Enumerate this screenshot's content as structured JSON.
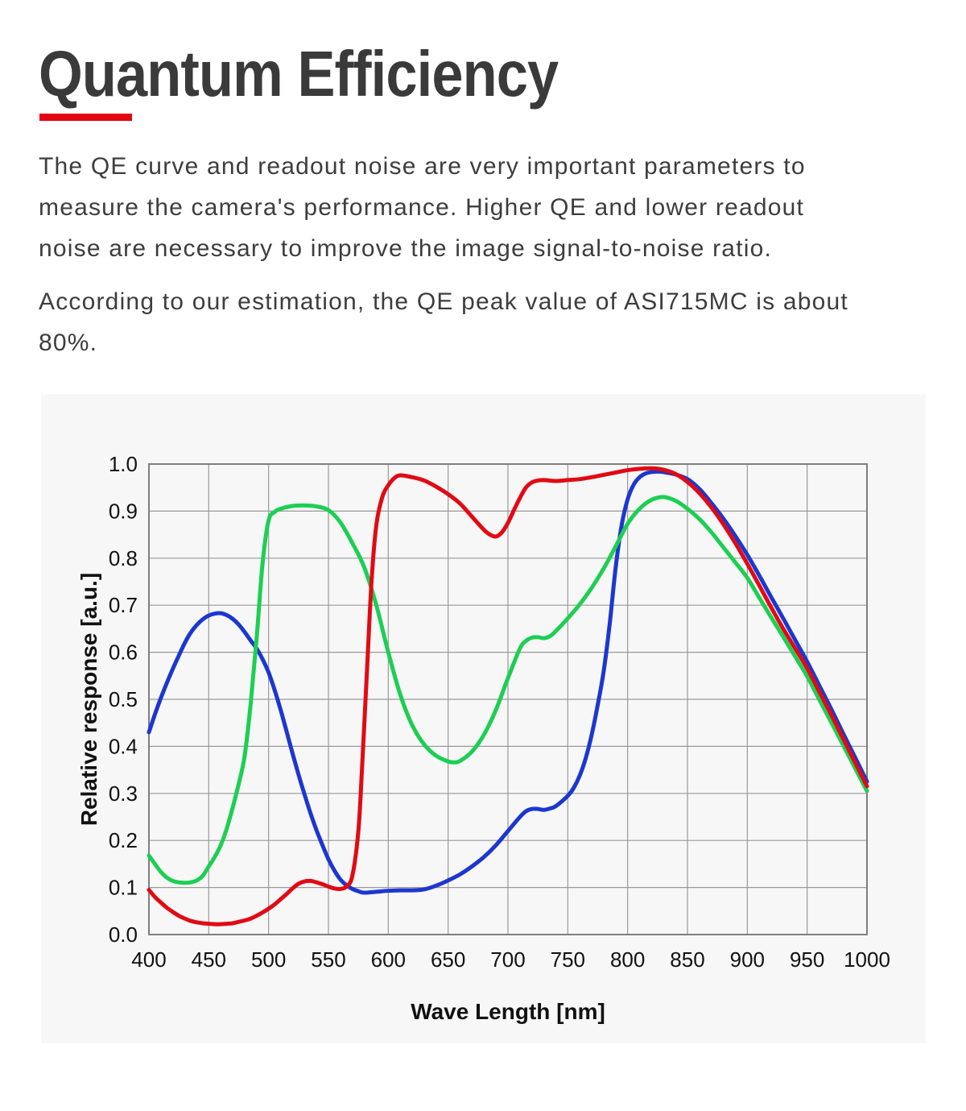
{
  "header": {
    "title": "Quantum Efficiency"
  },
  "paragraphs": {
    "p1": "The QE curve and readout noise are very important parameters to\nmeasure the camera's performance. Higher QE and lower readout\nnoise are necessary to improve the image signal-to-noise ratio.",
    "p2": "According to our estimation, the QE peak value of ASI715MC is about\n80%."
  },
  "colors": {
    "accent_red": "#e30613",
    "heading_text": "#3a3a3a",
    "body_text": "#3d3d3d",
    "panel_background": "#f7f7f7",
    "grid_line": "#999999",
    "plot_border": "#7f7f7f",
    "tick_text": "#111111"
  },
  "chart_data": {
    "type": "line",
    "title": "",
    "xlabel": "Wave Length [nm]",
    "ylabel": "Relative response  [a.u.]",
    "xlim": [
      400,
      1000
    ],
    "ylim": [
      0.0,
      1.0
    ],
    "grid": true,
    "legend_position": "none",
    "x_ticks": [
      "400",
      "450",
      "500",
      "550",
      "600",
      "650",
      "700",
      "750",
      "800",
      "850",
      "900",
      "950",
      "1000"
    ],
    "y_ticks": [
      "0.0",
      "0.1",
      "0.2",
      "0.3",
      "0.4",
      "0.5",
      "0.6",
      "0.7",
      "0.8",
      "0.9",
      "1.0"
    ],
    "series": [
      {
        "name": "blue-channel",
        "color": "#1c37d0",
        "points": [
          [
            400,
            0.43
          ],
          [
            405,
            0.468
          ],
          [
            410,
            0.503
          ],
          [
            415,
            0.535
          ],
          [
            420,
            0.565
          ],
          [
            425,
            0.593
          ],
          [
            430,
            0.62
          ],
          [
            435,
            0.642
          ],
          [
            440,
            0.658
          ],
          [
            445,
            0.67
          ],
          [
            450,
            0.678
          ],
          [
            455,
            0.682
          ],
          [
            460,
            0.683
          ],
          [
            465,
            0.679
          ],
          [
            470,
            0.671
          ],
          [
            475,
            0.659
          ],
          [
            480,
            0.643
          ],
          [
            485,
            0.625
          ],
          [
            490,
            0.608
          ],
          [
            495,
            0.585
          ],
          [
            500,
            0.557
          ],
          [
            505,
            0.52
          ],
          [
            510,
            0.478
          ],
          [
            515,
            0.432
          ],
          [
            520,
            0.385
          ],
          [
            525,
            0.34
          ],
          [
            530,
            0.298
          ],
          [
            535,
            0.258
          ],
          [
            540,
            0.222
          ],
          [
            545,
            0.19
          ],
          [
            550,
            0.16
          ],
          [
            555,
            0.136
          ],
          [
            560,
            0.117
          ],
          [
            565,
            0.105
          ],
          [
            570,
            0.097
          ],
          [
            575,
            0.092
          ],
          [
            580,
            0.089
          ],
          [
            590,
            0.091
          ],
          [
            600,
            0.093
          ],
          [
            610,
            0.094
          ],
          [
            620,
            0.094
          ],
          [
            630,
            0.096
          ],
          [
            640,
            0.104
          ],
          [
            650,
            0.115
          ],
          [
            660,
            0.128
          ],
          [
            670,
            0.145
          ],
          [
            680,
            0.165
          ],
          [
            690,
            0.19
          ],
          [
            700,
            0.22
          ],
          [
            710,
            0.25
          ],
          [
            715,
            0.262
          ],
          [
            720,
            0.267
          ],
          [
            725,
            0.267
          ],
          [
            730,
            0.265
          ],
          [
            735,
            0.268
          ],
          [
            740,
            0.273
          ],
          [
            750,
            0.295
          ],
          [
            755,
            0.312
          ],
          [
            760,
            0.338
          ],
          [
            765,
            0.375
          ],
          [
            770,
            0.425
          ],
          [
            775,
            0.488
          ],
          [
            780,
            0.56
          ],
          [
            785,
            0.66
          ],
          [
            790,
            0.78
          ],
          [
            795,
            0.87
          ],
          [
            800,
            0.925
          ],
          [
            805,
            0.956
          ],
          [
            810,
            0.972
          ],
          [
            815,
            0.98
          ],
          [
            820,
            0.983
          ],
          [
            825,
            0.984
          ],
          [
            830,
            0.983
          ],
          [
            840,
            0.978
          ],
          [
            850,
            0.968
          ],
          [
            860,
            0.947
          ],
          [
            870,
            0.917
          ],
          [
            880,
            0.884
          ],
          [
            890,
            0.847
          ],
          [
            900,
            0.807
          ],
          [
            910,
            0.763
          ],
          [
            920,
            0.717
          ],
          [
            930,
            0.672
          ],
          [
            940,
            0.626
          ],
          [
            950,
            0.58
          ],
          [
            960,
            0.53
          ],
          [
            970,
            0.48
          ],
          [
            980,
            0.428
          ],
          [
            990,
            0.377
          ],
          [
            1000,
            0.325
          ]
        ]
      },
      {
        "name": "green-channel",
        "color": "#1ccf52",
        "points": [
          [
            400,
            0.168
          ],
          [
            405,
            0.15
          ],
          [
            410,
            0.133
          ],
          [
            415,
            0.121
          ],
          [
            420,
            0.114
          ],
          [
            425,
            0.111
          ],
          [
            430,
            0.11
          ],
          [
            435,
            0.111
          ],
          [
            440,
            0.115
          ],
          [
            445,
            0.125
          ],
          [
            450,
            0.145
          ],
          [
            455,
            0.165
          ],
          [
            460,
            0.19
          ],
          [
            465,
            0.225
          ],
          [
            470,
            0.27
          ],
          [
            475,
            0.32
          ],
          [
            480,
            0.38
          ],
          [
            485,
            0.49
          ],
          [
            490,
            0.63
          ],
          [
            495,
            0.79
          ],
          [
            500,
            0.88
          ],
          [
            505,
            0.898
          ],
          [
            510,
            0.905
          ],
          [
            520,
            0.911
          ],
          [
            530,
            0.912
          ],
          [
            540,
            0.91
          ],
          [
            550,
            0.902
          ],
          [
            560,
            0.876
          ],
          [
            570,
            0.832
          ],
          [
            580,
            0.78
          ],
          [
            590,
            0.7
          ],
          [
            600,
            0.6
          ],
          [
            610,
            0.51
          ],
          [
            620,
            0.445
          ],
          [
            630,
            0.404
          ],
          [
            640,
            0.38
          ],
          [
            650,
            0.368
          ],
          [
            655,
            0.366
          ],
          [
            660,
            0.369
          ],
          [
            670,
            0.389
          ],
          [
            680,
            0.425
          ],
          [
            690,
            0.478
          ],
          [
            700,
            0.545
          ],
          [
            710,
            0.608
          ],
          [
            715,
            0.624
          ],
          [
            720,
            0.631
          ],
          [
            725,
            0.632
          ],
          [
            730,
            0.63
          ],
          [
            735,
            0.634
          ],
          [
            740,
            0.645
          ],
          [
            750,
            0.672
          ],
          [
            760,
            0.702
          ],
          [
            770,
            0.737
          ],
          [
            780,
            0.778
          ],
          [
            790,
            0.825
          ],
          [
            800,
            0.873
          ],
          [
            810,
            0.905
          ],
          [
            820,
            0.924
          ],
          [
            830,
            0.93
          ],
          [
            840,
            0.922
          ],
          [
            850,
            0.905
          ],
          [
            860,
            0.883
          ],
          [
            870,
            0.855
          ],
          [
            880,
            0.823
          ],
          [
            890,
            0.791
          ],
          [
            900,
            0.758
          ],
          [
            910,
            0.716
          ],
          [
            920,
            0.674
          ],
          [
            930,
            0.633
          ],
          [
            940,
            0.591
          ],
          [
            950,
            0.549
          ],
          [
            960,
            0.5
          ],
          [
            970,
            0.452
          ],
          [
            980,
            0.403
          ],
          [
            990,
            0.354
          ],
          [
            1000,
            0.305
          ]
        ]
      },
      {
        "name": "red-channel",
        "color": "#e10a14",
        "points": [
          [
            400,
            0.095
          ],
          [
            405,
            0.08
          ],
          [
            410,
            0.068
          ],
          [
            415,
            0.057
          ],
          [
            420,
            0.048
          ],
          [
            425,
            0.04
          ],
          [
            430,
            0.034
          ],
          [
            435,
            0.029
          ],
          [
            440,
            0.026
          ],
          [
            445,
            0.024
          ],
          [
            450,
            0.023
          ],
          [
            455,
            0.022
          ],
          [
            460,
            0.022
          ],
          [
            465,
            0.023
          ],
          [
            470,
            0.024
          ],
          [
            475,
            0.027
          ],
          [
            480,
            0.03
          ],
          [
            485,
            0.034
          ],
          [
            490,
            0.04
          ],
          [
            495,
            0.047
          ],
          [
            500,
            0.055
          ],
          [
            505,
            0.064
          ],
          [
            510,
            0.075
          ],
          [
            515,
            0.086
          ],
          [
            520,
            0.098
          ],
          [
            525,
            0.108
          ],
          [
            530,
            0.113
          ],
          [
            535,
            0.114
          ],
          [
            540,
            0.111
          ],
          [
            545,
            0.107
          ],
          [
            550,
            0.102
          ],
          [
            555,
            0.098
          ],
          [
            560,
            0.097
          ],
          [
            565,
            0.102
          ],
          [
            570,
            0.125
          ],
          [
            575,
            0.22
          ],
          [
            578,
            0.35
          ],
          [
            582,
            0.55
          ],
          [
            586,
            0.75
          ],
          [
            590,
            0.87
          ],
          [
            595,
            0.93
          ],
          [
            600,
            0.955
          ],
          [
            605,
            0.97
          ],
          [
            610,
            0.976
          ],
          [
            620,
            0.972
          ],
          [
            630,
            0.965
          ],
          [
            640,
            0.952
          ],
          [
            650,
            0.936
          ],
          [
            660,
            0.916
          ],
          [
            670,
            0.888
          ],
          [
            680,
            0.86
          ],
          [
            685,
            0.85
          ],
          [
            690,
            0.846
          ],
          [
            695,
            0.855
          ],
          [
            700,
            0.875
          ],
          [
            705,
            0.902
          ],
          [
            710,
            0.928
          ],
          [
            715,
            0.95
          ],
          [
            720,
            0.961
          ],
          [
            725,
            0.965
          ],
          [
            730,
            0.966
          ],
          [
            740,
            0.964
          ],
          [
            750,
            0.966
          ],
          [
            760,
            0.968
          ],
          [
            770,
            0.972
          ],
          [
            780,
            0.977
          ],
          [
            790,
            0.982
          ],
          [
            800,
            0.987
          ],
          [
            810,
            0.99
          ],
          [
            820,
            0.991
          ],
          [
            830,
            0.988
          ],
          [
            840,
            0.979
          ],
          [
            850,
            0.962
          ],
          [
            860,
            0.938
          ],
          [
            870,
            0.908
          ],
          [
            880,
            0.872
          ],
          [
            890,
            0.832
          ],
          [
            900,
            0.788
          ],
          [
            910,
            0.742
          ],
          [
            920,
            0.695
          ],
          [
            930,
            0.65
          ],
          [
            940,
            0.608
          ],
          [
            950,
            0.566
          ],
          [
            960,
            0.517
          ],
          [
            970,
            0.468
          ],
          [
            980,
            0.417
          ],
          [
            990,
            0.366
          ],
          [
            1000,
            0.315
          ]
        ]
      }
    ]
  }
}
